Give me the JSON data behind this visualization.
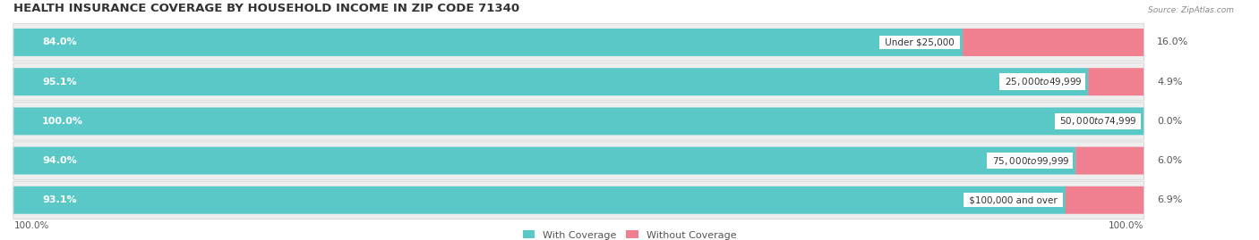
{
  "title": "HEALTH INSURANCE COVERAGE BY HOUSEHOLD INCOME IN ZIP CODE 71340",
  "source": "Source: ZipAtlas.com",
  "categories": [
    "Under $25,000",
    "$25,000 to $49,999",
    "$50,000 to $74,999",
    "$75,000 to $99,999",
    "$100,000 and over"
  ],
  "with_coverage": [
    84.0,
    95.1,
    100.0,
    94.0,
    93.1
  ],
  "without_coverage": [
    16.0,
    4.9,
    0.0,
    6.0,
    6.9
  ],
  "color_with": "#5bc8c8",
  "color_without": "#f08090",
  "row_bg_color": "#eeeeee",
  "title_fontsize": 9.5,
  "label_fontsize": 8,
  "legend_fontsize": 8,
  "x_left_label": "100.0%",
  "x_right_label": "100.0%"
}
